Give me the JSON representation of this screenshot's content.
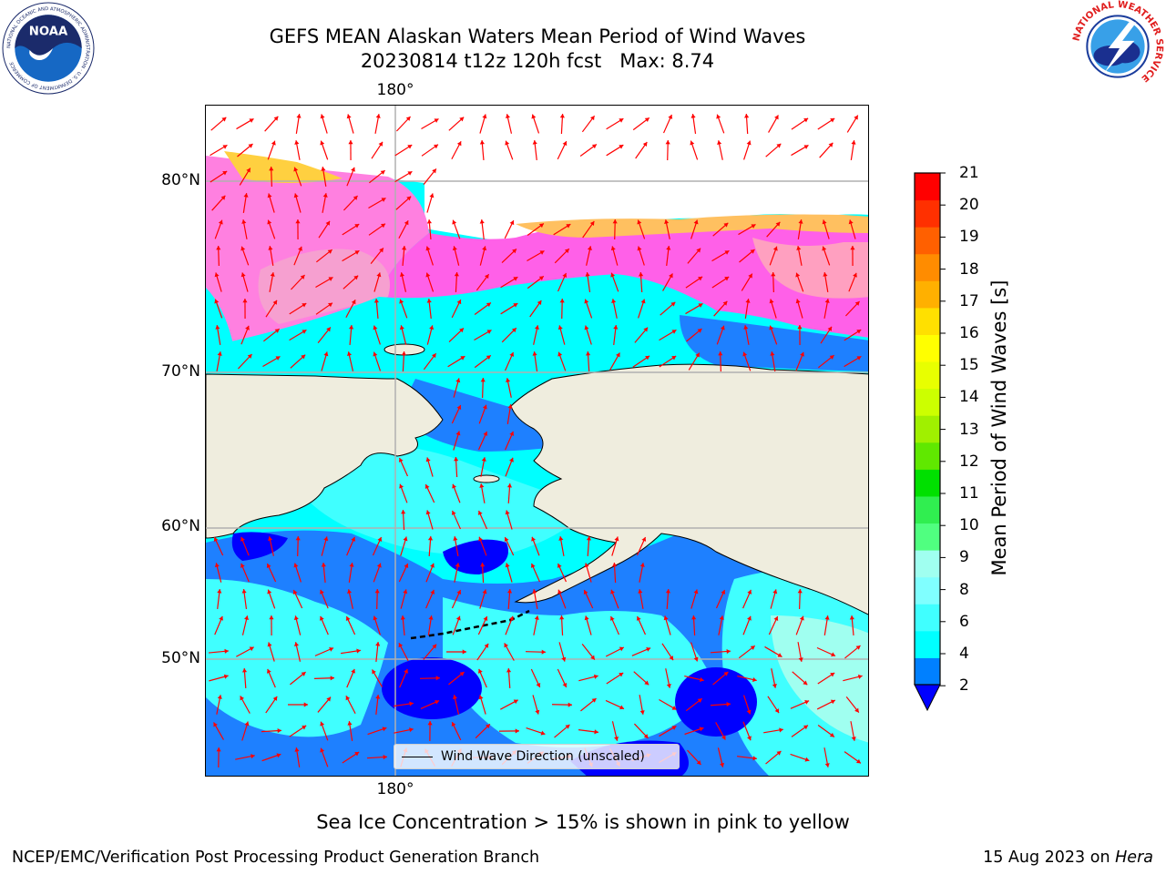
{
  "header": {
    "title_line1": "GEFS MEAN Alaskan Waters Mean Period of Wind Waves",
    "title_line2": "20230814 t12z 120h fcst   Max: 8.74"
  },
  "logos": {
    "noaa_text": "NOAA",
    "noaa_ring": "NATIONAL OCEANIC AND ATMOSPHERIC ADMINISTRATION · U.S. DEPARTMENT OF COMMERCE",
    "nws_ring": "NATIONAL WEATHER SERVICE"
  },
  "map": {
    "lon_top_label": "180°",
    "lon_bottom_label": "180°",
    "lat_labels": [
      "80°N",
      "70°N",
      "60°N",
      "50°N"
    ],
    "legend_label": "Wind Wave Direction (unscaled)",
    "colors": {
      "land": "#efedde",
      "vector": "#ff0000",
      "grid": "#b0b0b0"
    }
  },
  "colorbar": {
    "label": "Mean Period of Wind Waves [s]",
    "ticks": [
      "21",
      "20",
      "19",
      "18",
      "17",
      "16",
      "15",
      "14",
      "13",
      "12",
      "11",
      "10",
      "9",
      "8",
      "6",
      "4",
      "2"
    ],
    "colors_bottom_to_top": [
      "#0080ff",
      "#00ffff",
      "#40ffff",
      "#80ffff",
      "#a0fff0",
      "#50ff80",
      "#30ee50",
      "#00e000",
      "#60e800",
      "#a0f000",
      "#ccff00",
      "#e8ff00",
      "#ffff00",
      "#ffe000",
      "#ffb000",
      "#ff8c00",
      "#ff6000",
      "#ff3000",
      "#ff0000"
    ],
    "under_color": "#0000ff"
  },
  "caption": "Sea Ice Concentration > 15% is shown in pink to yellow",
  "footer": {
    "left": "NCEP/EMC/Verification Post Processing Product Generation Branch",
    "date": "15 Aug 2023 on",
    "machine": "Hera"
  }
}
